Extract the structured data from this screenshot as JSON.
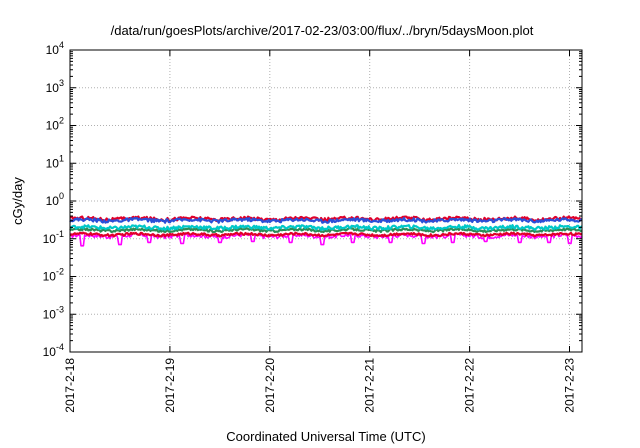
{
  "chart_data": {
    "type": "line",
    "title": "/data/run/goesPlots/archive/2017-02-23/03:00/flux/../bryn/5daysMoon.plot",
    "xlabel": "Coordinated Universal Time (UTC)",
    "ylabel": "cGy/day",
    "yscale": "log",
    "ylim": [
      0.0001,
      10000
    ],
    "y_ticks": [
      {
        "base": "10",
        "exp": "-4",
        "value": 0.0001
      },
      {
        "base": "10",
        "exp": "-3",
        "value": 0.001
      },
      {
        "base": "10",
        "exp": "-2",
        "value": 0.01
      },
      {
        "base": "10",
        "exp": "-1",
        "value": 0.1
      },
      {
        "base": "10",
        "exp": "0",
        "value": 1
      },
      {
        "base": "10",
        "exp": "1",
        "value": 10
      },
      {
        "base": "10",
        "exp": "2",
        "value": 100
      },
      {
        "base": "10",
        "exp": "3",
        "value": 1000
      },
      {
        "base": "10",
        "exp": "4",
        "value": 10000
      }
    ],
    "xlim": [
      "2017-02-18T00:00",
      "2017-02-23T03:00"
    ],
    "x_ticks": [
      {
        "label": "2017-2-18",
        "date": "2017-02-18T00:00"
      },
      {
        "label": "2017-2-19",
        "date": "2017-02-19T00:00"
      },
      {
        "label": "2017-2-20",
        "date": "2017-02-20T00:00"
      },
      {
        "label": "2017-2-21",
        "date": "2017-02-21T00:00"
      },
      {
        "label": "2017-2-22",
        "date": "2017-02-22T00:00"
      },
      {
        "label": "2017-2-23",
        "date": "2017-02-23T00:00"
      }
    ],
    "grid": true,
    "series": [
      {
        "color": "#ff00ff",
        "base": 0.12,
        "amp": 0.12,
        "dips": [
          {
            "date": "2017-02-18T03:00",
            "value": 0.065
          },
          {
            "date": "2017-02-18T12:00",
            "value": 0.07
          },
          {
            "date": "2017-02-18T19:00",
            "value": 0.08
          },
          {
            "date": "2017-02-19T03:00",
            "value": 0.075
          },
          {
            "date": "2017-02-19T12:00",
            "value": 0.08
          },
          {
            "date": "2017-02-19T20:00",
            "value": 0.085
          },
          {
            "date": "2017-02-20T05:00",
            "value": 0.08
          },
          {
            "date": "2017-02-20T12:30",
            "value": 0.07
          },
          {
            "date": "2017-02-20T20:00",
            "value": 0.08
          },
          {
            "date": "2017-02-21T05:00",
            "value": 0.08
          },
          {
            "date": "2017-02-21T13:00",
            "value": 0.075
          },
          {
            "date": "2017-02-21T20:00",
            "value": 0.08
          },
          {
            "date": "2017-02-22T04:00",
            "value": 0.085
          },
          {
            "date": "2017-02-22T12:00",
            "value": 0.08
          },
          {
            "date": "2017-02-22T19:00",
            "value": 0.08
          },
          {
            "date": "2017-02-23T00:00",
            "value": 0.075
          }
        ]
      },
      {
        "color": "#e0002a",
        "base": 0.13,
        "amp": 0.07,
        "dips": []
      },
      {
        "color": "#2e8b57",
        "base": 0.17,
        "amp": 0.07,
        "dips": []
      },
      {
        "color": "#00c8c8",
        "base": 0.2,
        "amp": 0.1,
        "dips": []
      },
      {
        "color": "#e0002a",
        "base": 0.34,
        "amp": 0.1,
        "dips": []
      },
      {
        "color": "#2a4fd8",
        "base": 0.31,
        "amp": 0.1,
        "dips": []
      }
    ]
  }
}
